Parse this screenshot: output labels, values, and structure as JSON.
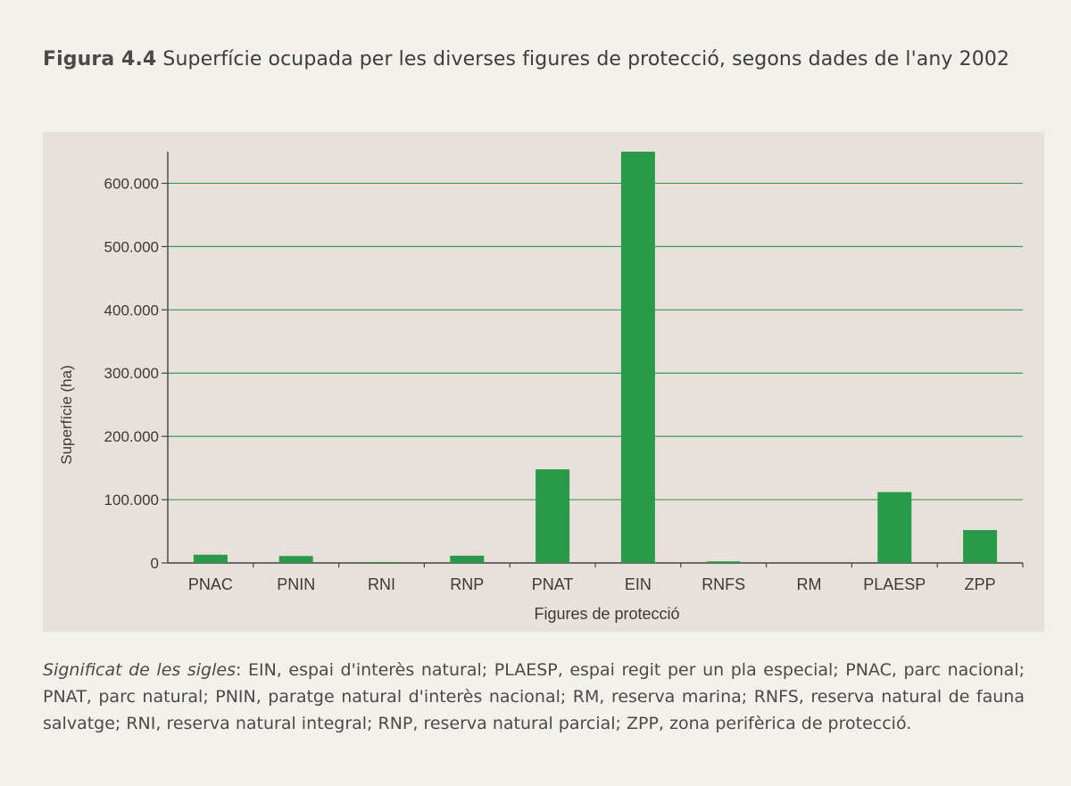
{
  "figure": {
    "label": "Figura 4.4",
    "title": "Superfície ocupada per les diverses figures de protecció, segons dades de l'any 2002"
  },
  "chart_data": {
    "type": "bar",
    "title": "",
    "xlabel": "Figures de protecció",
    "ylabel": "Superfície (ha)",
    "categories": [
      "PNAC",
      "PNIN",
      "RNI",
      "RNP",
      "PNAT",
      "EIN",
      "RNFS",
      "RM",
      "PLAESP",
      "ZPP"
    ],
    "values": [
      13000,
      11000,
      1500,
      11500,
      148000,
      654000,
      2500,
      0,
      112000,
      52000
    ],
    "ylim": [
      0,
      650000
    ],
    "yticks": [
      0,
      100000,
      200000,
      300000,
      400000,
      500000,
      600000
    ],
    "ytick_labels": [
      "0",
      "100.000",
      "200.000",
      "300.000",
      "400.000",
      "500.000",
      "600.000"
    ],
    "grid": true,
    "bar_color": "#2a9a4a",
    "grid_color": "#3d9a5a",
    "axis_color": "#444444"
  },
  "note": {
    "label": "Significat de les sigles",
    "text": ": EIN, espai d'interès natural; PLAESP, espai regit per un pla especial; PNAC, parc nacional; PNAT, parc natural; PNIN, paratge natural d'interès nacional; RM, reserva marina; RNFS, reserva natural de fauna salvatge; RNI, reserva natural integral; RNP, reserva natural parcial; ZPP, zona perifèrica de protecció."
  }
}
